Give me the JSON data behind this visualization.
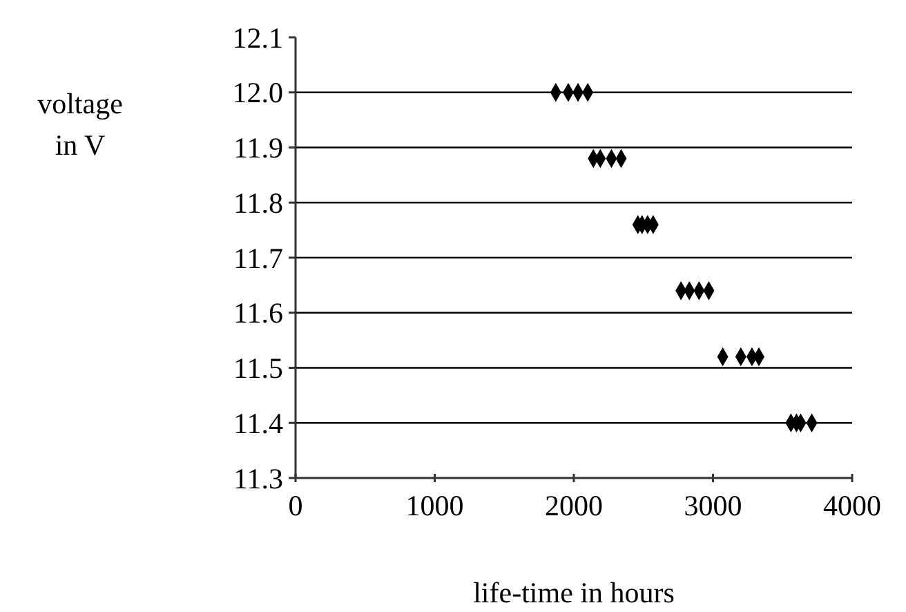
{
  "chart_data": {
    "type": "scatter",
    "xlabel": "life-time in hours",
    "ylabel": "voltage in V",
    "x": [
      1870,
      1960,
      2030,
      2100,
      2140,
      2190,
      2270,
      2340,
      2460,
      2490,
      2530,
      2570,
      2770,
      2830,
      2900,
      2970,
      3070,
      3200,
      3280,
      3330,
      3560,
      3600,
      3630,
      3710
    ],
    "values": [
      12.0,
      12.0,
      12.0,
      12.0,
      11.88,
      11.88,
      11.88,
      11.88,
      11.76,
      11.76,
      11.76,
      11.76,
      11.64,
      11.64,
      11.64,
      11.64,
      11.52,
      11.52,
      11.52,
      11.52,
      11.4,
      11.4,
      11.4,
      11.4
    ],
    "color": "#000000",
    "marker": "diamond",
    "grid": "y",
    "xlim": [
      0,
      4000
    ],
    "xticks": [
      0,
      1000,
      2000,
      3000,
      4000
    ],
    "ylim": [
      11.3,
      12.1
    ],
    "yticks": [
      11.3,
      11.4,
      11.5,
      11.6,
      11.7,
      11.8,
      11.9,
      {
        "value": 12.0,
        "label": "12.0"
      },
      12.1
    ]
  }
}
